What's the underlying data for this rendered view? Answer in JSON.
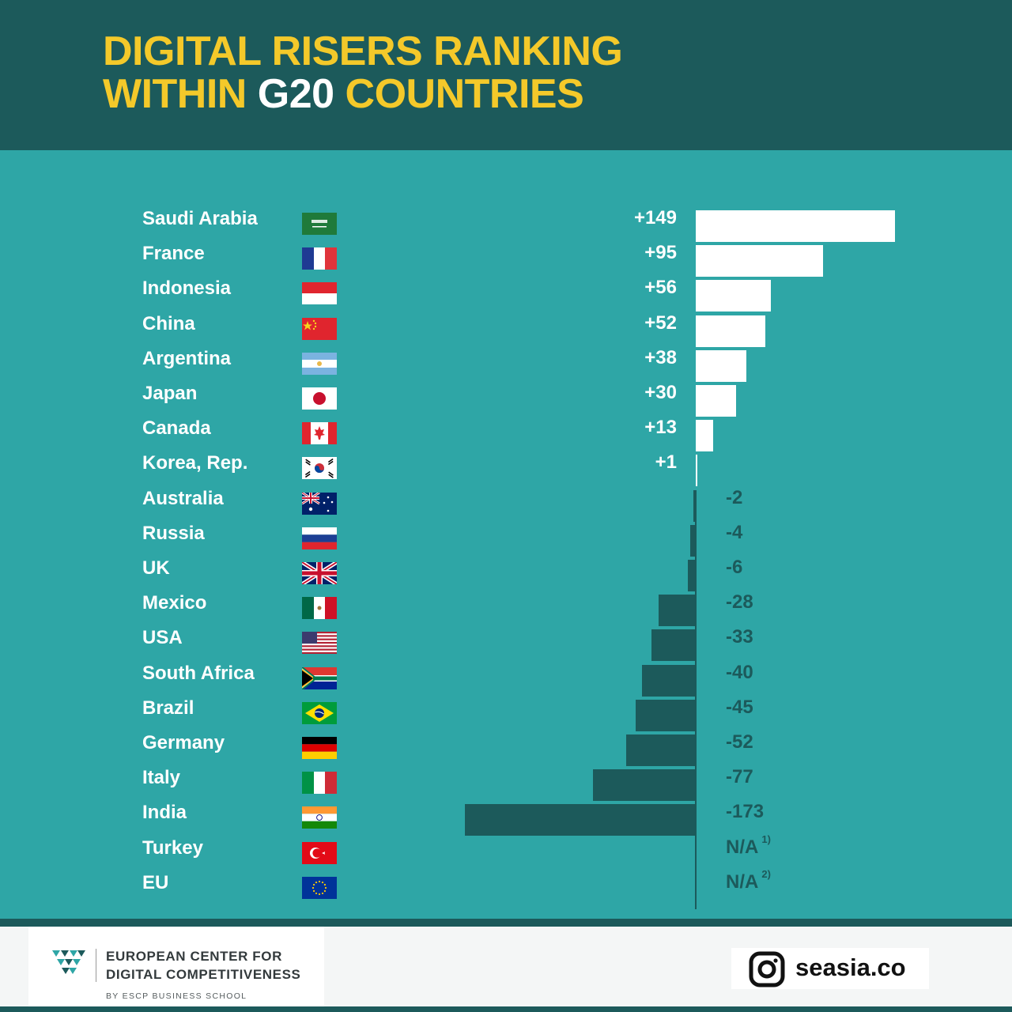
{
  "title": {
    "line1": "DIGITAL RISERS RANKING",
    "line2_before": "WITHIN ",
    "line2_highlight": "G20",
    "line2_after": " COUNTRIES"
  },
  "colors": {
    "header_bg": "#1c5a5b",
    "body_bg": "#2ea6a6",
    "title_yellow": "#f4c92a",
    "positive_bar": "#ffffff",
    "negative_bar": "#1c5a5b"
  },
  "chart_data": {
    "type": "bar",
    "orientation": "horizontal",
    "title": "DIGITAL RISERS RANKING WITHIN G20 COUNTRIES",
    "categories": [
      "Saudi Arabia",
      "France",
      "Indonesia",
      "China",
      "Argentina",
      "Japan",
      "Canada",
      "Korea, Rep.",
      "Australia",
      "Russia",
      "UK",
      "Mexico",
      "USA",
      "South Africa",
      "Brazil",
      "Germany",
      "Italy",
      "India",
      "Turkey",
      "EU"
    ],
    "values": [
      149,
      95,
      56,
      52,
      38,
      30,
      13,
      1,
      -2,
      -4,
      -6,
      -28,
      -33,
      -40,
      -45,
      -52,
      -77,
      -173,
      null,
      null
    ],
    "labels": [
      "+149",
      "+95",
      "+56",
      "+52",
      "+38",
      "+30",
      "+13",
      "+1",
      "-2",
      "-4",
      "-6",
      "-28",
      "-33",
      "-40",
      "-45",
      "-52",
      "-77",
      "-173",
      "N/A",
      "N/A"
    ],
    "footnotes": [
      "",
      "",
      "",
      "",
      "",
      "",
      "",
      "",
      "",
      "",
      "",
      "",
      "",
      "",
      "",
      "",
      "",
      "",
      "1)",
      "2)"
    ],
    "flags": [
      "saudi-arabia",
      "france",
      "indonesia",
      "china",
      "argentina",
      "japan",
      "canada",
      "korea",
      "australia",
      "russia",
      "uk",
      "mexico",
      "usa",
      "south-africa",
      "brazil",
      "germany",
      "italy",
      "india",
      "turkey",
      "eu"
    ]
  },
  "footer": {
    "org_line1": "EUROPEAN CENTER FOR",
    "org_line2": "DIGITAL COMPETITIVENESS",
    "org_sub": "BY ESCP BUSINESS SCHOOL",
    "instagram_handle": "seasia.co"
  }
}
